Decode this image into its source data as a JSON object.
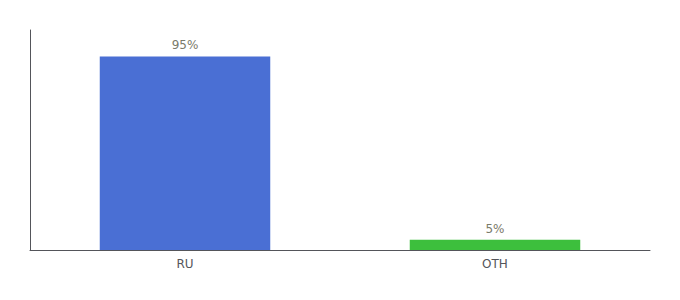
{
  "chart_data": {
    "type": "bar",
    "categories": [
      "RU",
      "OTH"
    ],
    "values": [
      95,
      5
    ],
    "value_labels": [
      "95%",
      "5%"
    ],
    "data_labels": true,
    "colors": [
      "#4a6fd4",
      "#3dbf3d"
    ],
    "ylim": [
      0,
      108
    ],
    "grid": false,
    "tick_labels": "x"
  }
}
